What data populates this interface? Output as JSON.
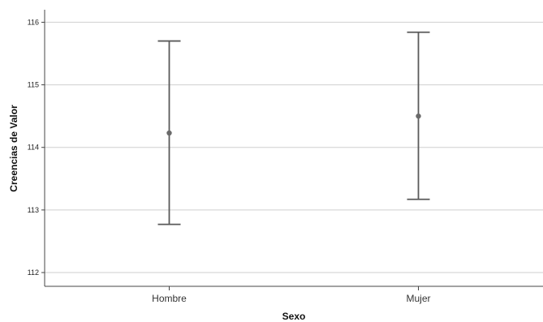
{
  "chart_data": {
    "type": "errorbar",
    "xlabel": "Sexo",
    "ylabel": "Creencias de Valor",
    "categories": [
      "Hombre",
      "Mujer"
    ],
    "series": [
      {
        "mean": [
          114.23,
          114.5
        ],
        "lower": [
          112.77,
          113.17
        ],
        "upper": [
          115.7,
          115.84
        ]
      }
    ],
    "ylim": [
      111.78,
      116.2
    ],
    "yticks": [
      "112",
      "113",
      "114",
      "115",
      "116"
    ],
    "grid": true,
    "colors": {
      "marks": "#5a5a5a",
      "grid": "#cfcfcf",
      "axis": "#444444"
    }
  }
}
